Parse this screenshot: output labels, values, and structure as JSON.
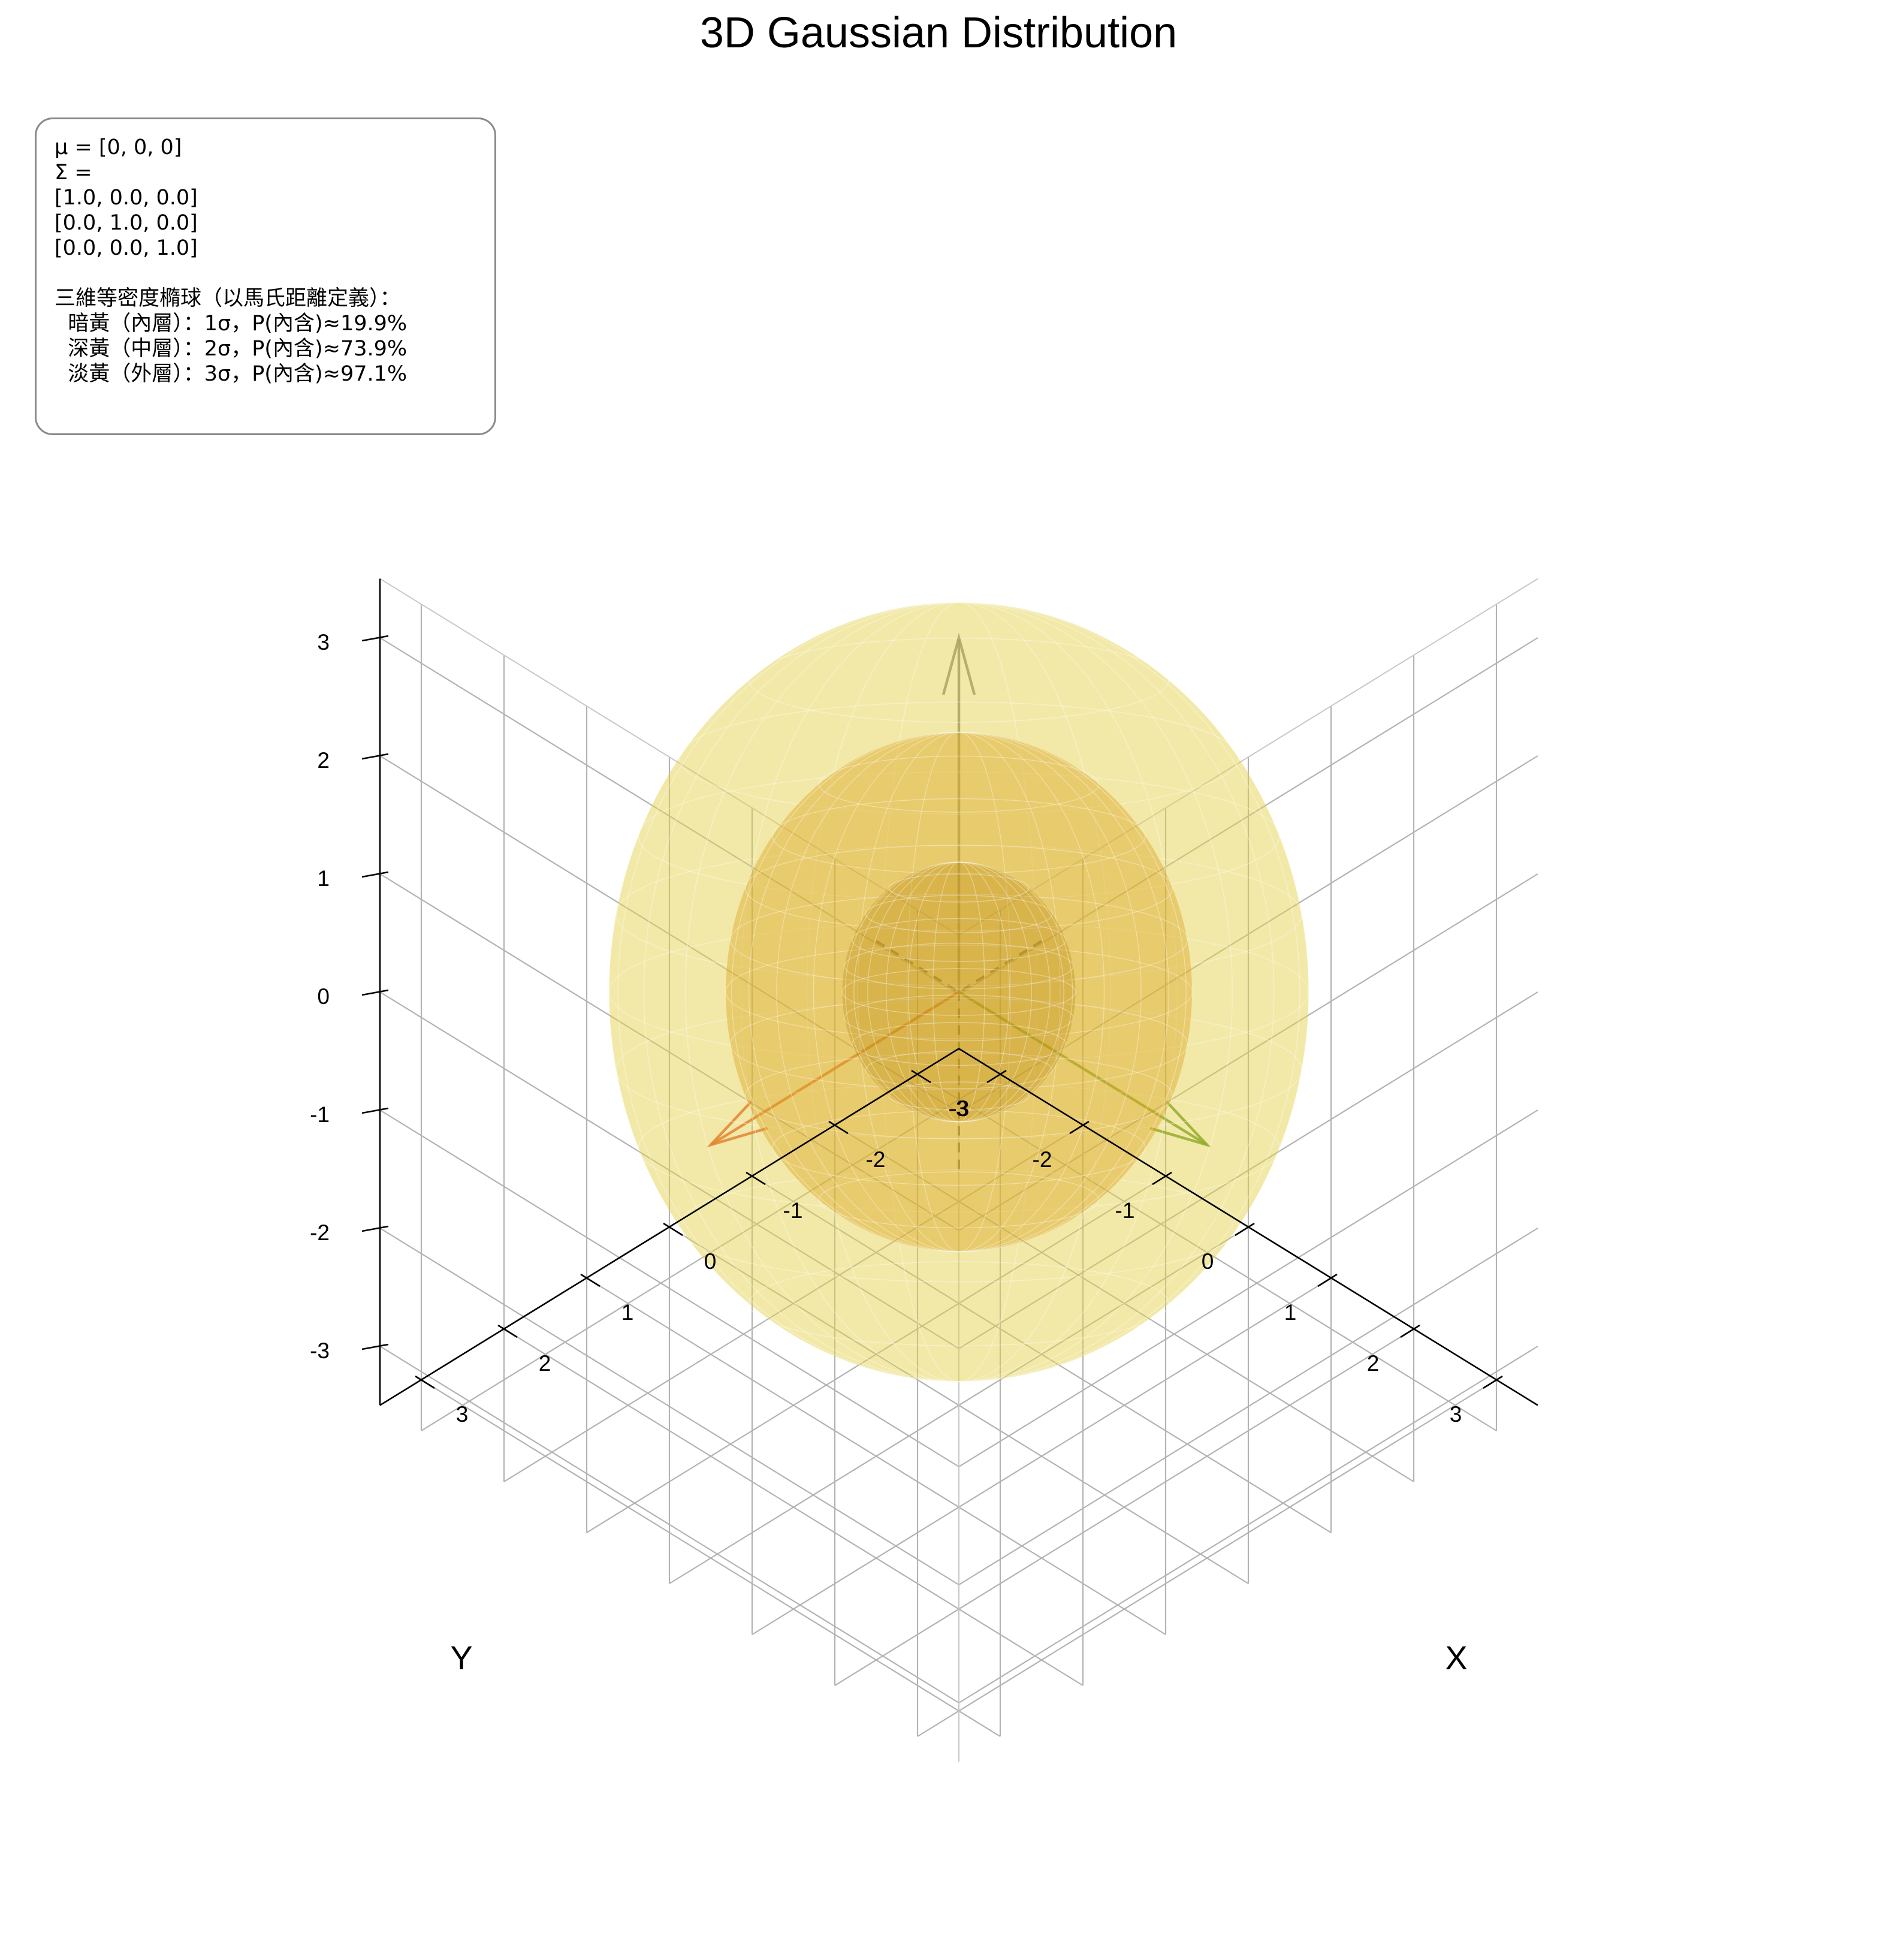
{
  "chart_data": {
    "type": "surface3d",
    "title": "3D Gaussian Distribution",
    "xlabel": "X",
    "ylabel": "Y",
    "zlabel": "",
    "xlim": [
      -3.5,
      3.5
    ],
    "ylim": [
      -3.5,
      3.5
    ],
    "zlim": [
      -3.5,
      3.5
    ],
    "x_ticks": [
      "-3",
      "-2",
      "-1",
      "0",
      "1",
      "2",
      "3"
    ],
    "y_ticks": [
      "-3",
      "-2",
      "-1",
      "0",
      "1",
      "2",
      "3"
    ],
    "z_ticks": [
      "-3",
      "-2",
      "-1",
      "0",
      "1",
      "2",
      "3"
    ],
    "grid": true,
    "mean": [
      0,
      0,
      0
    ],
    "covariance": [
      [
        1.0,
        0.0,
        0.0
      ],
      [
        0.0,
        1.0,
        0.0
      ],
      [
        0.0,
        0.0,
        1.0
      ]
    ],
    "ellipsoids": [
      {
        "sigma": 1,
        "probability_percent": 19.9,
        "color": "#b8860b"
      },
      {
        "sigma": 2,
        "probability_percent": 73.9,
        "color": "#daa520"
      },
      {
        "sigma": 3,
        "probability_percent": 97.1,
        "color": "#e4d04c"
      }
    ],
    "principal_axes": [
      {
        "direction": [
          1,
          0,
          0
        ],
        "color": "#e0401a"
      },
      {
        "direction": [
          0,
          1,
          0
        ],
        "color": "#4c8c10"
      },
      {
        "direction": [
          0,
          0,
          1
        ],
        "color": "#7a7a7a"
      }
    ],
    "info_text": {
      "mu_line": "μ = [0, 0, 0]",
      "sigma_label": "Σ =",
      "matrix_rows": [
        "[1.0, 0.0, 0.0]",
        "[0.0, 1.0, 0.0]",
        "[0.0, 0.0, 1.0]"
      ],
      "heading": "三維等密度橢球（以馬氏距離定義）：",
      "layers": [
        "  暗黃（內層）：1σ，P(內含)≈19.9%",
        "  深黃（中層）：2σ，P(內含)≈73.9%",
        "  淡黃（外層）：3σ，P(內含)≈97.1%"
      ]
    }
  }
}
